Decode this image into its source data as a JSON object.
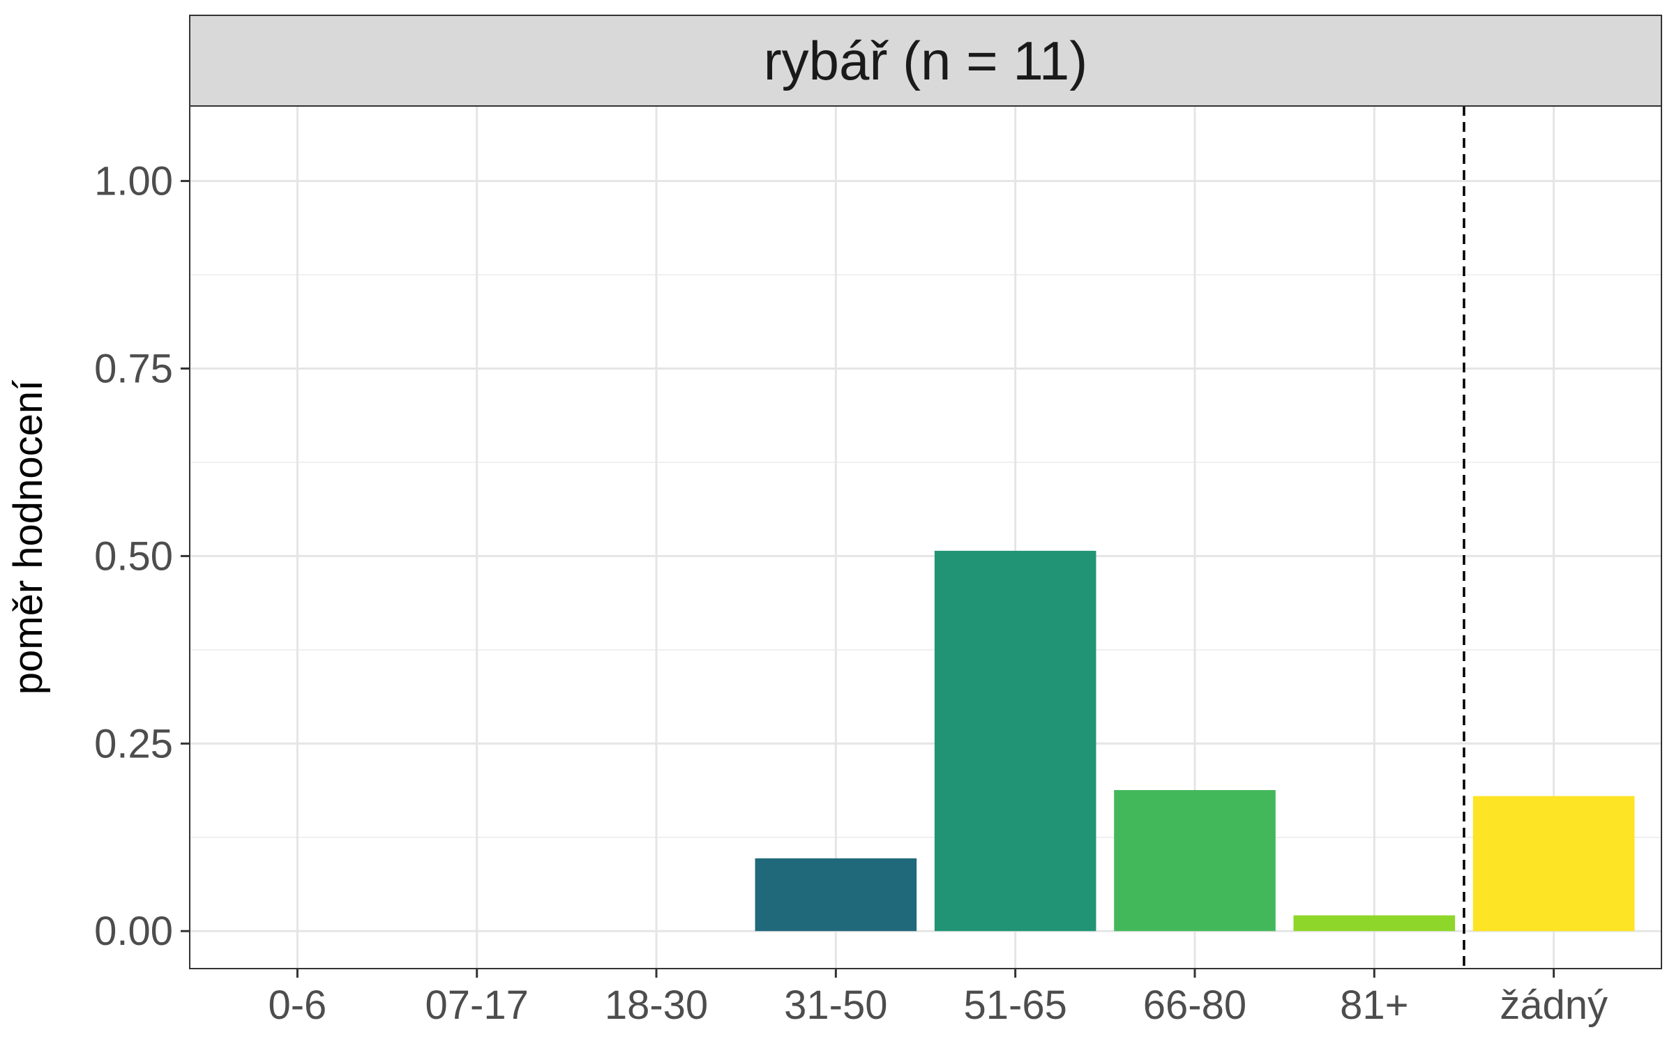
{
  "chart_data": {
    "type": "bar",
    "facet_title": "rybář (n = 11)",
    "ylabel": "poměr hodnocení",
    "xlabel": "",
    "categories": [
      "0-6",
      "07-17",
      "18-30",
      "31-50",
      "51-65",
      "66-80",
      "81+",
      "žádný"
    ],
    "values": [
      0,
      0,
      0,
      0.097,
      0.507,
      0.188,
      0.021,
      0.18
    ],
    "colors": [
      "#440154",
      "#46337e",
      "#365c8d",
      "#21908c",
      "#21908c",
      "#44bf70",
      "#8fd744",
      "#fde725"
    ],
    "bar_colors": {
      "31-50": "#20697a",
      "51-65": "#219476",
      "66-80": "#43b85a",
      "81+": "#8fd62a",
      "žádný": "#fde424"
    },
    "ylim": [
      -0.05,
      1.1
    ],
    "yticks": [
      0,
      0.25,
      0.5,
      0.75,
      1
    ],
    "ytick_labels": [
      "0.00",
      "0.25",
      "0.50",
      "0.75",
      "1.00"
    ],
    "reference_line": {
      "between": [
        "81+",
        "žádný"
      ],
      "style": "dashed",
      "color": "#000000"
    },
    "grid": true,
    "legend": "none"
  }
}
